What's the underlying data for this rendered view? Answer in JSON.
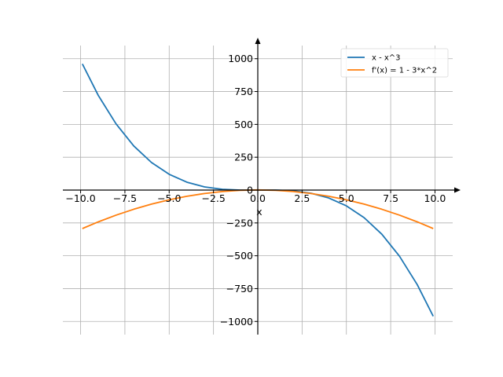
{
  "chart_data": {
    "type": "line",
    "title": "",
    "xlabel": "x",
    "ylabel": "",
    "xlim": [
      -11,
      11
    ],
    "ylim": [
      -1100,
      1100
    ],
    "grid": true,
    "legend_position": "top-right",
    "x_ticks": [
      -10.0,
      -7.5,
      -5.0,
      -2.5,
      0.0,
      2.5,
      5.0,
      7.5,
      10.0
    ],
    "x_tick_labels": [
      "−10.0",
      "−7.5",
      "−5.0",
      "−2.5",
      "0.0",
      "2.5",
      "5.0",
      "7.5",
      "10.0"
    ],
    "y_ticks": [
      1000,
      750,
      500,
      250,
      0,
      -250,
      -500,
      -750,
      -1000
    ],
    "y_tick_labels": [
      "1000",
      "750",
      "500",
      "250",
      "0",
      "−250",
      "−500",
      "−750",
      "−1000"
    ],
    "series": [
      {
        "name": "x - x^3",
        "color": "#1f77b4",
        "x": [
          -9.9,
          -9,
          -8,
          -7,
          -6,
          -5,
          -4,
          -3,
          -2,
          -1,
          0,
          1,
          2,
          3,
          4,
          5,
          6,
          7,
          8,
          9,
          9.9
        ],
        "y": [
          960.4,
          720,
          504,
          336,
          210,
          120,
          60,
          24,
          6,
          0,
          0,
          0,
          -6,
          -24,
          -60,
          -120,
          -210,
          -336,
          -504,
          -720,
          -960.4
        ]
      },
      {
        "name": "f'(x) = 1 - 3*x^2",
        "color": "#ff7f0e",
        "x": [
          -9.9,
          -9,
          -8,
          -7,
          -6,
          -5,
          -4,
          -3,
          -2,
          -1,
          0,
          1,
          2,
          3,
          4,
          5,
          6,
          7,
          8,
          9,
          9.9
        ],
        "y": [
          -293,
          -242,
          -191,
          -146,
          -107,
          -74,
          -47,
          -26,
          -11,
          -2,
          1,
          -2,
          -11,
          -26,
          -47,
          -74,
          -107,
          -146,
          -191,
          -242,
          -293
        ]
      }
    ]
  }
}
